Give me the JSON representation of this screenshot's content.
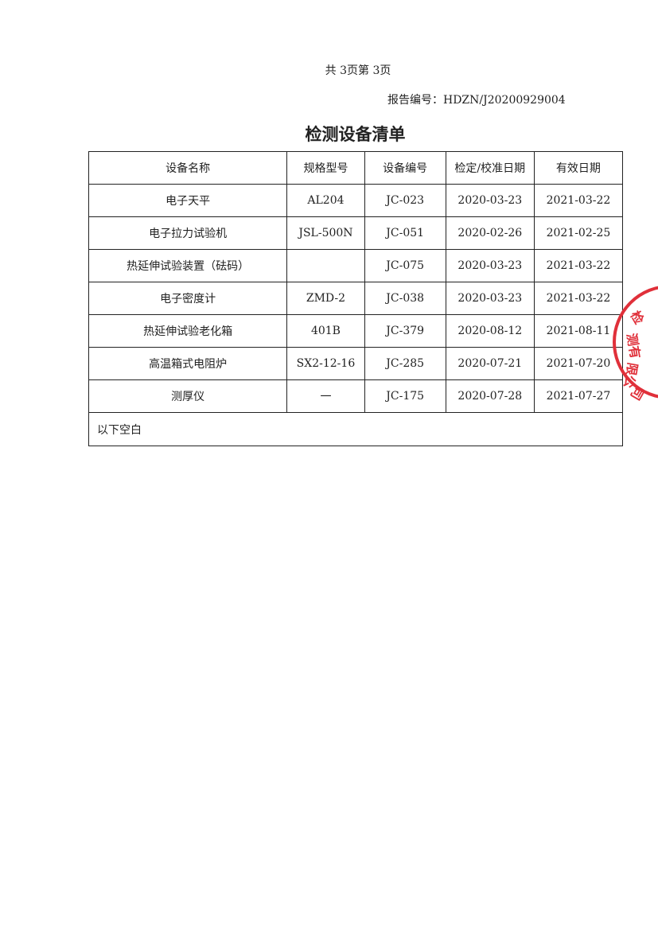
{
  "header": {
    "page_info": "共 3页第 3页",
    "report_number": "报告编号：HDZN/J20200929004"
  },
  "title": "检测设备清单",
  "table": {
    "columns": [
      "设备名称",
      "规格型号",
      "设备编号",
      "检定/校准日期",
      "有效日期"
    ],
    "rows": [
      [
        "电子天平",
        "AL204",
        "JC-023",
        "2020-03-23",
        "2021-03-22"
      ],
      [
        "电子拉力试验机",
        "JSL-500N",
        "JC-051",
        "2020-02-26",
        "2021-02-25"
      ],
      [
        "热延伸试验装置（砝码）",
        "",
        "JC-075",
        "2020-03-23",
        "2021-03-22"
      ],
      [
        "电子密度计",
        "ZMD-2",
        "JC-038",
        "2020-03-23",
        "2021-03-22"
      ],
      [
        "热延伸试验老化箱",
        "401B",
        "JC-379",
        "2020-08-12",
        "2021-08-11"
      ],
      [
        "高温箱式电阻炉",
        "SX2-12-16",
        "JC-285",
        "2020-07-21",
        "2021-07-20"
      ],
      [
        "测厚仪",
        "一",
        "JC-175",
        "2020-07-28",
        "2021-07-27"
      ]
    ],
    "footer_note": "以下空白"
  },
  "stamp": {
    "text": "检测有限公司",
    "color": "#e0303a"
  }
}
